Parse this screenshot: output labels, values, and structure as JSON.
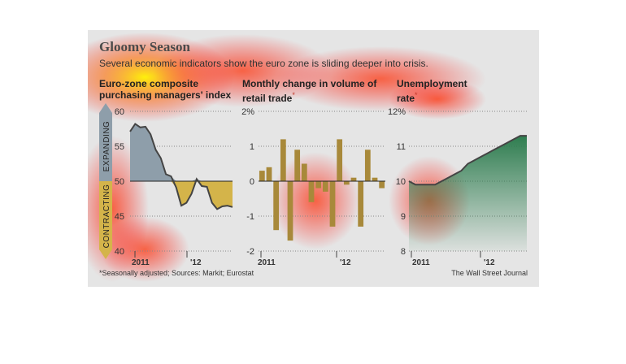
{
  "header": {
    "title": "Gloomy Season",
    "subtitle": "Several economic indicators show the euro zone is sliding deeper into crisis."
  },
  "footer": {
    "footnote": "*Seasonally adjusted; Sources: Markit; Eurostat",
    "credit": "The Wall Street Journal"
  },
  "colors": {
    "panel_bg": "#e5e5e5",
    "pmi_expanding": "#8e9eaa",
    "pmi_contracting": "#d4b44a",
    "retail_bars": "#a8893a",
    "unemployment_fill": "#2e7d4f",
    "line": "#444444"
  },
  "chart_data": [
    {
      "type": "area",
      "title_line1": "Euro-zone composite",
      "title_line2": "purchasing managers' index",
      "yticks": [
        "60",
        "55",
        "50",
        "45",
        "40"
      ],
      "ylim": [
        40,
        60
      ],
      "baseline": 50,
      "xticks": [
        "2011",
        "'12"
      ],
      "region_labels": {
        "above": "EXPANDING",
        "below": "CONTRACTING"
      },
      "x_start": 2010.92,
      "x_end": 2012.67,
      "y": [
        57.1,
        58.2,
        57.7,
        57.8,
        56.7,
        54.5,
        53.3,
        51.0,
        50.7,
        49.1,
        46.5,
        46.9,
        48.2,
        50.3,
        49.3,
        49.2,
        46.9,
        46.0,
        46.4,
        46.5,
        46.3
      ]
    },
    {
      "type": "bar",
      "title_line1": "Monthly change in volume of",
      "title_line2": "retail trade",
      "title_mark": "*",
      "yticks": [
        "2%",
        "1",
        "0",
        "-1",
        "-2"
      ],
      "ylim": [
        -2,
        2
      ],
      "xticks": [
        "2011",
        "'12"
      ],
      "values": [
        0.3,
        0.4,
        -1.4,
        1.2,
        -1.7,
        0.9,
        0.5,
        -0.6,
        -0.2,
        -0.3,
        -1.3,
        1.2,
        -0.1,
        0.1,
        -1.3,
        0.9,
        0.1,
        -0.2
      ]
    },
    {
      "type": "area",
      "title_line1": "Unemployment",
      "title_line2": "rate",
      "title_mark": "*",
      "yticks": [
        "12%",
        "11",
        "10",
        "9",
        "8"
      ],
      "ylim": [
        8,
        12
      ],
      "xticks": [
        "2011",
        "'12"
      ],
      "y": [
        10.0,
        9.9,
        9.9,
        9.9,
        9.9,
        10.0,
        10.1,
        10.2,
        10.3,
        10.5,
        10.6,
        10.7,
        10.8,
        10.9,
        11.0,
        11.1,
        11.2,
        11.3,
        11.3
      ]
    }
  ]
}
